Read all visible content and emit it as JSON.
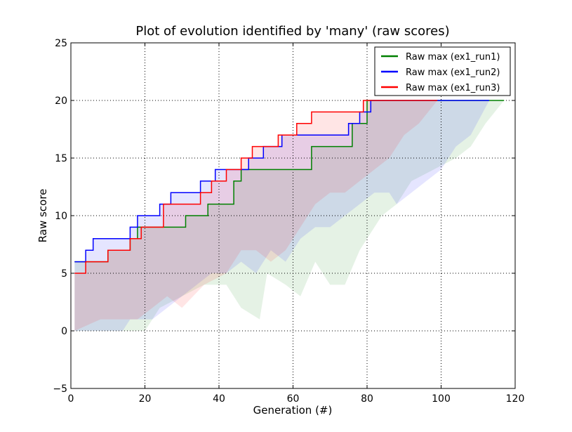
{
  "chart_data": {
    "type": "line",
    "title": "Plot of evolution identified by 'many' (raw scores)",
    "xlabel": "Generation (#)",
    "ylabel": "Raw score",
    "xlim": [
      0,
      120
    ],
    "ylim": [
      -5,
      25
    ],
    "xticks": [
      0,
      20,
      40,
      60,
      80,
      100,
      120
    ],
    "yticks": [
      -5,
      0,
      5,
      10,
      15,
      20,
      25
    ],
    "xtick_labels": [
      "0",
      "20",
      "40",
      "60",
      "80",
      "100",
      "120"
    ],
    "ytick_labels": [
      "−5",
      "0",
      "5",
      "10",
      "15",
      "20",
      "25"
    ],
    "grid": true,
    "grid_style": "dotted",
    "legend_position": "top-right",
    "series": [
      {
        "name": "Raw max (ex1_run1)",
        "color": "#008000",
        "max_steps": [
          [
            1,
            6
          ],
          [
            10,
            7
          ],
          [
            16,
            8
          ],
          [
            18,
            9
          ],
          [
            31,
            10
          ],
          [
            37,
            11
          ],
          [
            44,
            13
          ],
          [
            46,
            14
          ],
          [
            65,
            16
          ],
          [
            76,
            18
          ],
          [
            80,
            20
          ],
          [
            117,
            20
          ]
        ],
        "min_points": [
          [
            1,
            0
          ],
          [
            20,
            0
          ],
          [
            22,
            1
          ],
          [
            24,
            2
          ],
          [
            30,
            3
          ],
          [
            36,
            4
          ],
          [
            42,
            4
          ],
          [
            46,
            2
          ],
          [
            51,
            1
          ],
          [
            53,
            5
          ],
          [
            58,
            4
          ],
          [
            62,
            3
          ],
          [
            66,
            6
          ],
          [
            70,
            4
          ],
          [
            74,
            4
          ],
          [
            78,
            7
          ],
          [
            80,
            8
          ],
          [
            84,
            10
          ],
          [
            88,
            11
          ],
          [
            92,
            13
          ],
          [
            98,
            14
          ],
          [
            104,
            15
          ],
          [
            108,
            16
          ],
          [
            112,
            18
          ],
          [
            117,
            20
          ]
        ]
      },
      {
        "name": "Raw max (ex1_run2)",
        "color": "#0000ff",
        "max_steps": [
          [
            1,
            6
          ],
          [
            4,
            7
          ],
          [
            6,
            8
          ],
          [
            16,
            9
          ],
          [
            18,
            10
          ],
          [
            24,
            11
          ],
          [
            27,
            12
          ],
          [
            35,
            13
          ],
          [
            39,
            14
          ],
          [
            48,
            15
          ],
          [
            52,
            16
          ],
          [
            57,
            17
          ],
          [
            64,
            17
          ],
          [
            75,
            18
          ],
          [
            78,
            19
          ],
          [
            81,
            20
          ],
          [
            113,
            20
          ]
        ],
        "min_points": [
          [
            1,
            0
          ],
          [
            14,
            0
          ],
          [
            16,
            1
          ],
          [
            22,
            1
          ],
          [
            26,
            2
          ],
          [
            30,
            3
          ],
          [
            34,
            4
          ],
          [
            38,
            5
          ],
          [
            42,
            5
          ],
          [
            46,
            6
          ],
          [
            50,
            5
          ],
          [
            54,
            7
          ],
          [
            58,
            6
          ],
          [
            62,
            8
          ],
          [
            66,
            9
          ],
          [
            70,
            9
          ],
          [
            74,
            10
          ],
          [
            78,
            11
          ],
          [
            82,
            12
          ],
          [
            86,
            12
          ],
          [
            88,
            11
          ],
          [
            92,
            12
          ],
          [
            96,
            13
          ],
          [
            100,
            14
          ],
          [
            104,
            16
          ],
          [
            108,
            17
          ],
          [
            113,
            20
          ]
        ]
      },
      {
        "name": "Raw max (ex1_run3)",
        "color": "#ff0000",
        "max_steps": [
          [
            1,
            5
          ],
          [
            4,
            6
          ],
          [
            10,
            7
          ],
          [
            16,
            8
          ],
          [
            19,
            9
          ],
          [
            25,
            11
          ],
          [
            35,
            12
          ],
          [
            38,
            13
          ],
          [
            42,
            14
          ],
          [
            46,
            15
          ],
          [
            49,
            16
          ],
          [
            56,
            17
          ],
          [
            61,
            18
          ],
          [
            65,
            19
          ],
          [
            79,
            20
          ],
          [
            99,
            20
          ]
        ],
        "min_points": [
          [
            1,
            0
          ],
          [
            8,
            1
          ],
          [
            18,
            1
          ],
          [
            22,
            2
          ],
          [
            26,
            3
          ],
          [
            30,
            2
          ],
          [
            36,
            4
          ],
          [
            42,
            5
          ],
          [
            46,
            7
          ],
          [
            50,
            7
          ],
          [
            54,
            6
          ],
          [
            58,
            7
          ],
          [
            62,
            9
          ],
          [
            66,
            11
          ],
          [
            70,
            12
          ],
          [
            74,
            12
          ],
          [
            78,
            13
          ],
          [
            82,
            14
          ],
          [
            86,
            15
          ],
          [
            90,
            17
          ],
          [
            94,
            18
          ],
          [
            99,
            20
          ]
        ]
      }
    ]
  }
}
